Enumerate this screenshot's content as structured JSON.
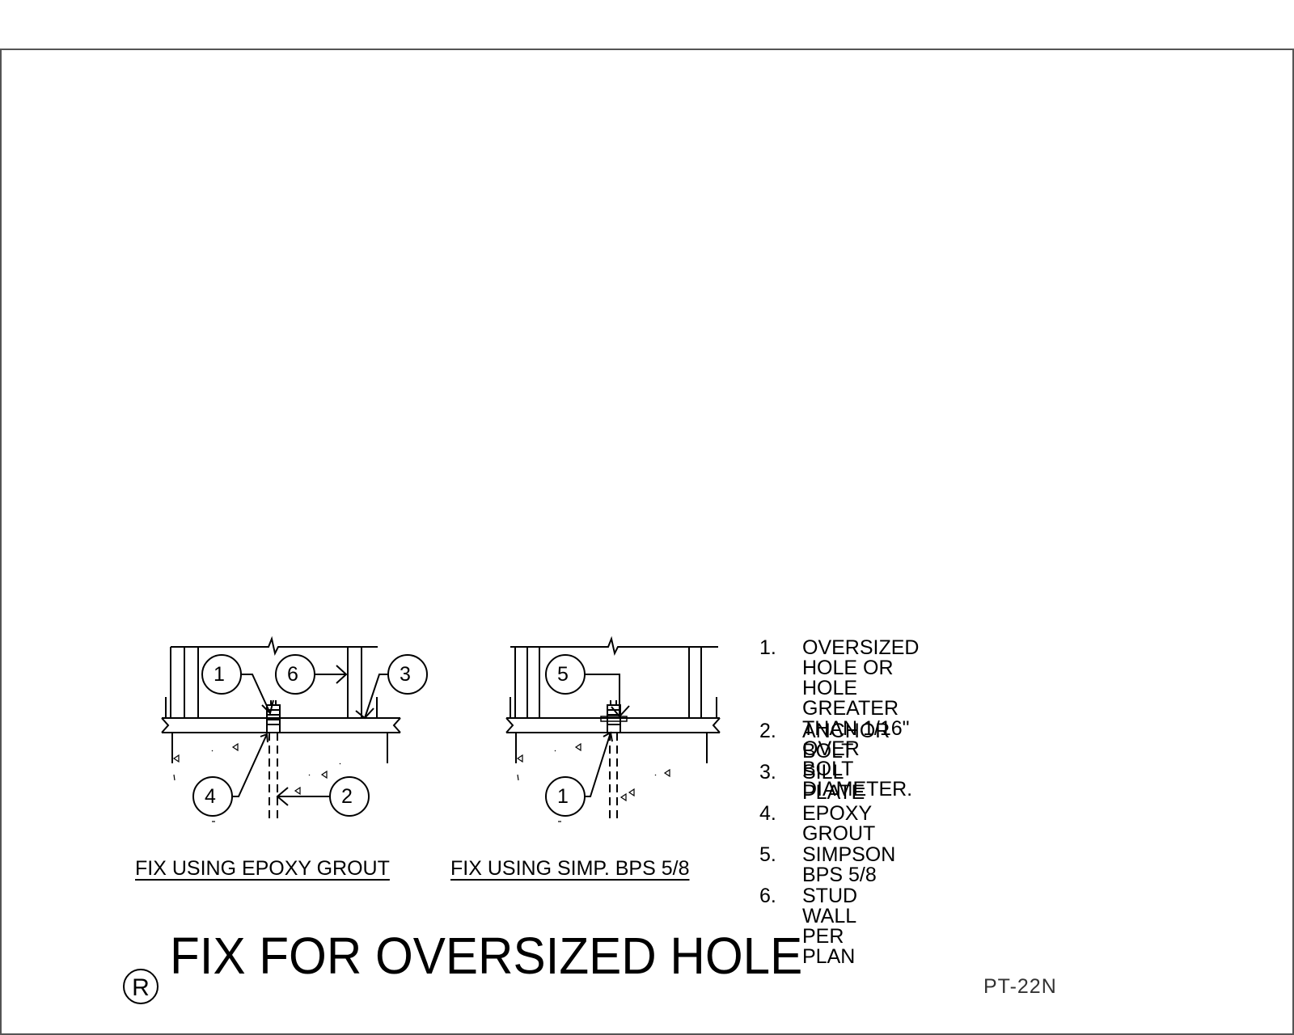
{
  "details": [
    {
      "caption": "FIX USING EPOXY GROUT",
      "callouts": [
        "1",
        "6",
        "3",
        "4",
        "2"
      ]
    },
    {
      "caption": "FIX USING SIMP. BPS 5/8",
      "callouts": [
        "5",
        "1"
      ]
    }
  ],
  "notes": [
    {
      "num": "1.",
      "text": "OVERSIZED HOLE OR HOLE\nGREATER THAN 1/16\" OVER\nBOLT DIAMETER."
    },
    {
      "num": "2.",
      "text": "ANCHOR BOLT"
    },
    {
      "num": "3.",
      "text": "SILL PLATE"
    },
    {
      "num": "4.",
      "text": "EPOXY GROUT"
    },
    {
      "num": "5.",
      "text": "SIMPSON BPS 5/8"
    },
    {
      "num": "6.",
      "text": "STUD WALL PER PLAN"
    }
  ],
  "title": "FIX FOR OVERSIZED HOLE",
  "title_mark": "R",
  "sheet_number": "PT-22N"
}
